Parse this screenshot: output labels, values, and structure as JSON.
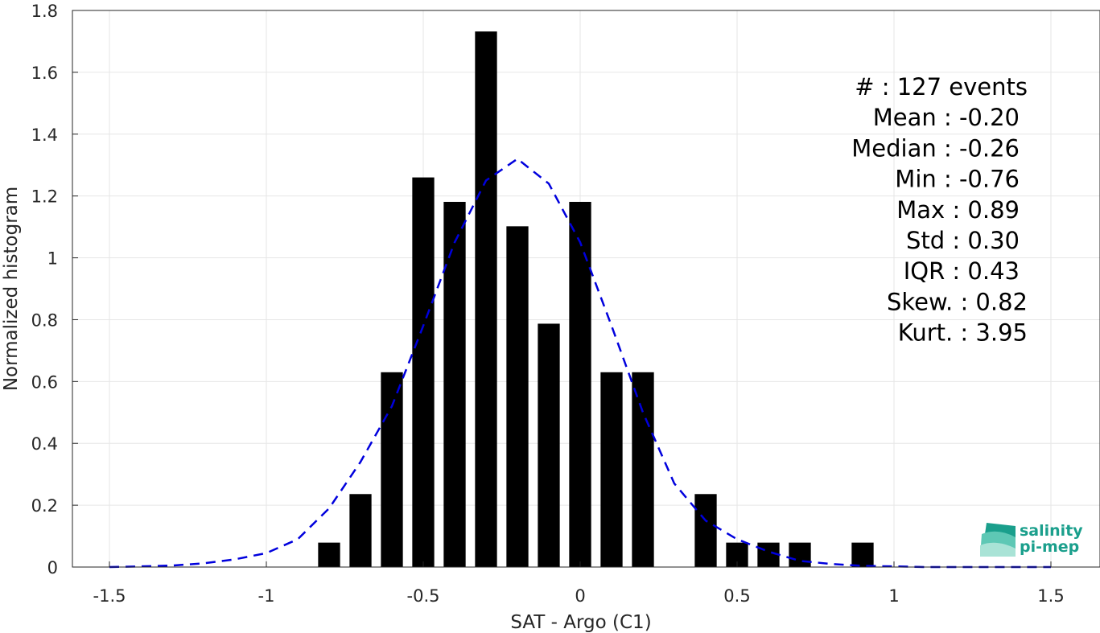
{
  "chart_data": {
    "type": "bar",
    "xlabel": "SAT - Argo (C1)",
    "ylabel": "Normalized histogram",
    "xlim": [
      -1.5,
      1.5
    ],
    "ylim": [
      0,
      1.8
    ],
    "x_ticks": [
      "-1.5",
      "-1",
      "-0.5",
      "0",
      "0.5",
      "1",
      "1.5"
    ],
    "y_ticks": [
      "0",
      "0.2",
      "0.4",
      "0.6",
      "0.8",
      "1",
      "1.2",
      "1.4",
      "1.6",
      "1.8"
    ],
    "grid": true,
    "bar_width": 0.07,
    "bars": {
      "x": [
        -0.8,
        -0.7,
        -0.6,
        -0.5,
        -0.4,
        -0.3,
        -0.2,
        -0.1,
        0.0,
        0.1,
        0.2,
        0.4,
        0.5,
        0.6,
        0.7,
        0.9
      ],
      "values": [
        0.079,
        0.236,
        0.63,
        1.26,
        1.181,
        1.732,
        1.102,
        0.787,
        1.181,
        0.63,
        0.63,
        0.236,
        0.079,
        0.079,
        0.079,
        0.079
      ],
      "color": "#000000"
    },
    "fit": {
      "style": "dashed",
      "color": "#0000dd",
      "x": [
        -1.5,
        -1.4,
        -1.3,
        -1.2,
        -1.1,
        -1.0,
        -0.9,
        -0.8,
        -0.7,
        -0.6,
        -0.5,
        -0.4,
        -0.3,
        -0.2,
        -0.1,
        0.0,
        0.1,
        0.2,
        0.3,
        0.4,
        0.5,
        0.6,
        0.7,
        0.8,
        0.9,
        1.0,
        1.1,
        1.2,
        1.3,
        1.4,
        1.5
      ],
      "y": [
        0.0,
        0.002,
        0.005,
        0.012,
        0.025,
        0.045,
        0.09,
        0.19,
        0.34,
        0.52,
        0.78,
        1.05,
        1.25,
        1.32,
        1.24,
        1.05,
        0.78,
        0.5,
        0.27,
        0.15,
        0.09,
        0.05,
        0.02,
        0.01,
        0.004,
        0.002,
        0.0,
        0.0,
        0.0,
        0.0,
        0.0
      ]
    },
    "stats": [
      "#  : 127 events",
      "Mean : -0.20",
      "Median : -0.26",
      "Min : -0.76",
      "Max : 0.89",
      "Std : 0.30",
      "IQR : 0.43",
      "Skew. : 0.82",
      "Kurt. : 3.95"
    ]
  },
  "logo": {
    "line1": "salinity",
    "line2": "pi-mep",
    "color": "#1a9f8c"
  }
}
